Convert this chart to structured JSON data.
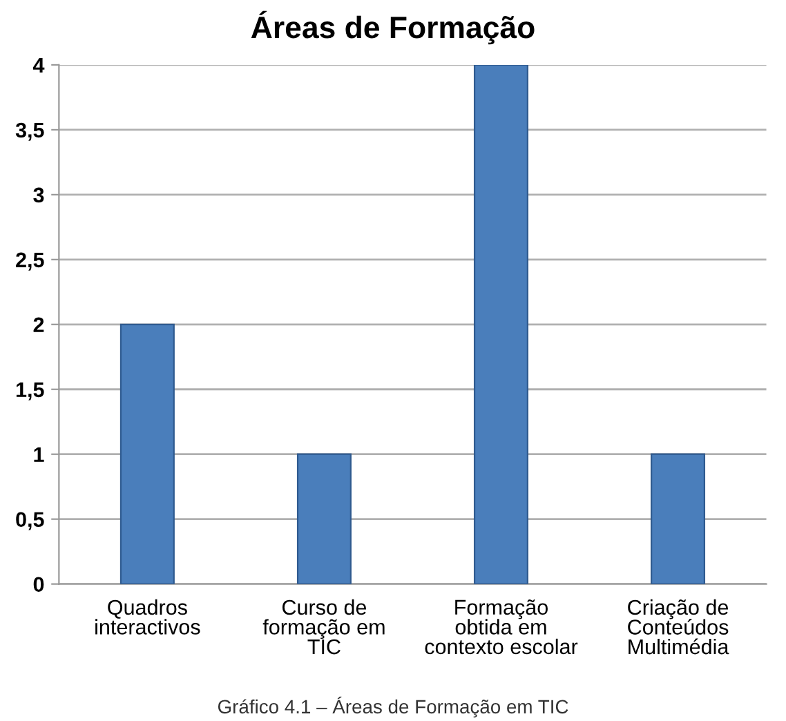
{
  "chart_data": {
    "type": "bar",
    "title": "Áreas de Formação",
    "categories": [
      "Quadros\ninteractivos",
      "Curso de\nformação em\nTIC",
      "Formação\nobtida em\ncontexto escolar",
      "Criação de\nConteúdos\nMultimédia"
    ],
    "values": [
      2,
      1,
      4,
      1
    ],
    "color": "#4a7ebb",
    "ylim": [
      0,
      4
    ],
    "yticks": [
      0,
      {
        "value": 0.5,
        "label": "0,5"
      },
      1,
      {
        "value": 1.5,
        "label": "1,5"
      },
      2,
      {
        "value": 2.5,
        "label": "2,5"
      },
      3,
      {
        "value": 3.5,
        "label": "3,5"
      },
      4
    ],
    "grid": "y",
    "legend": false,
    "annotations": [
      "Gráfico 4.1 – Áreas de Formação em TIC"
    ]
  }
}
